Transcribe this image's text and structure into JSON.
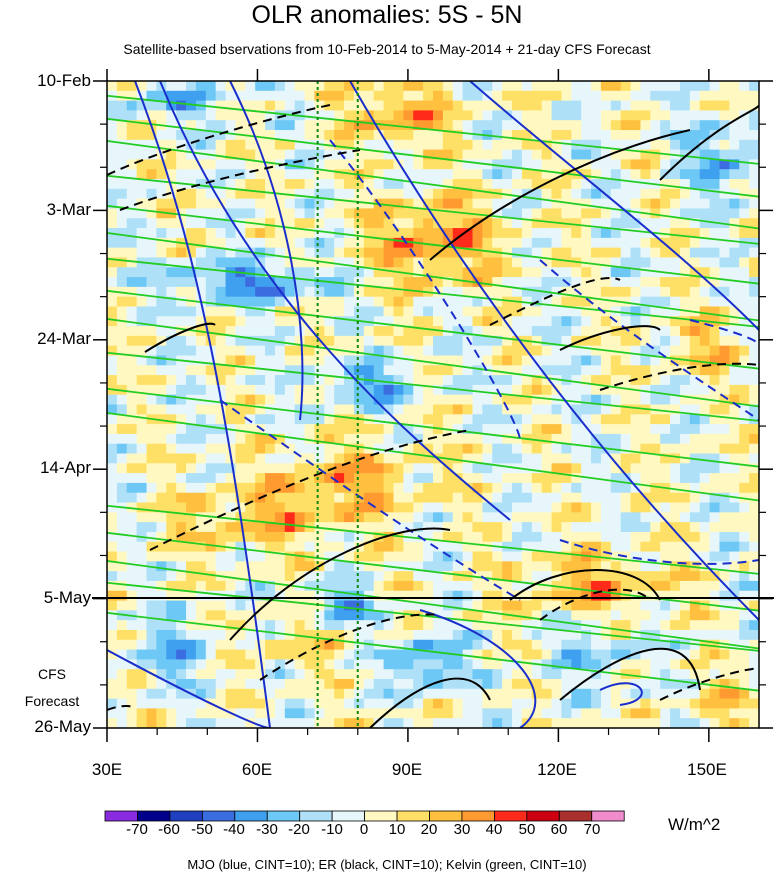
{
  "chart_data": {
    "type": "heatmap",
    "title": "OLR anomalies: 5S - 5N",
    "subtitle": "Satellite-based bservations from 10-Feb-2014 to 5-May-2014 + 21-day CFS Forecast",
    "x_ticks": [
      "30E",
      "60E",
      "90E",
      "120E",
      "150E"
    ],
    "x_tick_values": [
      30,
      60,
      90,
      120,
      150
    ],
    "xlim": [
      30,
      160
    ],
    "y_ticks": [
      "10-Feb",
      "3-Mar",
      "24-Mar",
      "14-Apr",
      "5-May",
      "26-May"
    ],
    "forecast_label": [
      "CFS",
      "Forecast"
    ],
    "forecast_start": "5-May",
    "colorbar": {
      "unit": "W/m^2",
      "levels": [
        "-70",
        "-60",
        "-50",
        "-40",
        "-30",
        "-20",
        "-10",
        "0",
        "10",
        "20",
        "30",
        "40",
        "50",
        "60",
        "70"
      ],
      "colors": [
        "#8a2be2",
        "#00008b",
        "#1f3fbf",
        "#3c6de0",
        "#3fa0f0",
        "#6ec8f5",
        "#aee0f8",
        "#e6f6fb",
        "#fff8c0",
        "#ffe066",
        "#ffc040",
        "#ff9a30",
        "#ff2a1a",
        "#cc0010",
        "#aa3030",
        "#f08ccc"
      ]
    },
    "contours_legend": "MJO (blue, CINT=10); ER (black, CINT=10); Kelvin (green, CINT=10)",
    "reference_lines_lon": [
      72,
      80
    ]
  }
}
